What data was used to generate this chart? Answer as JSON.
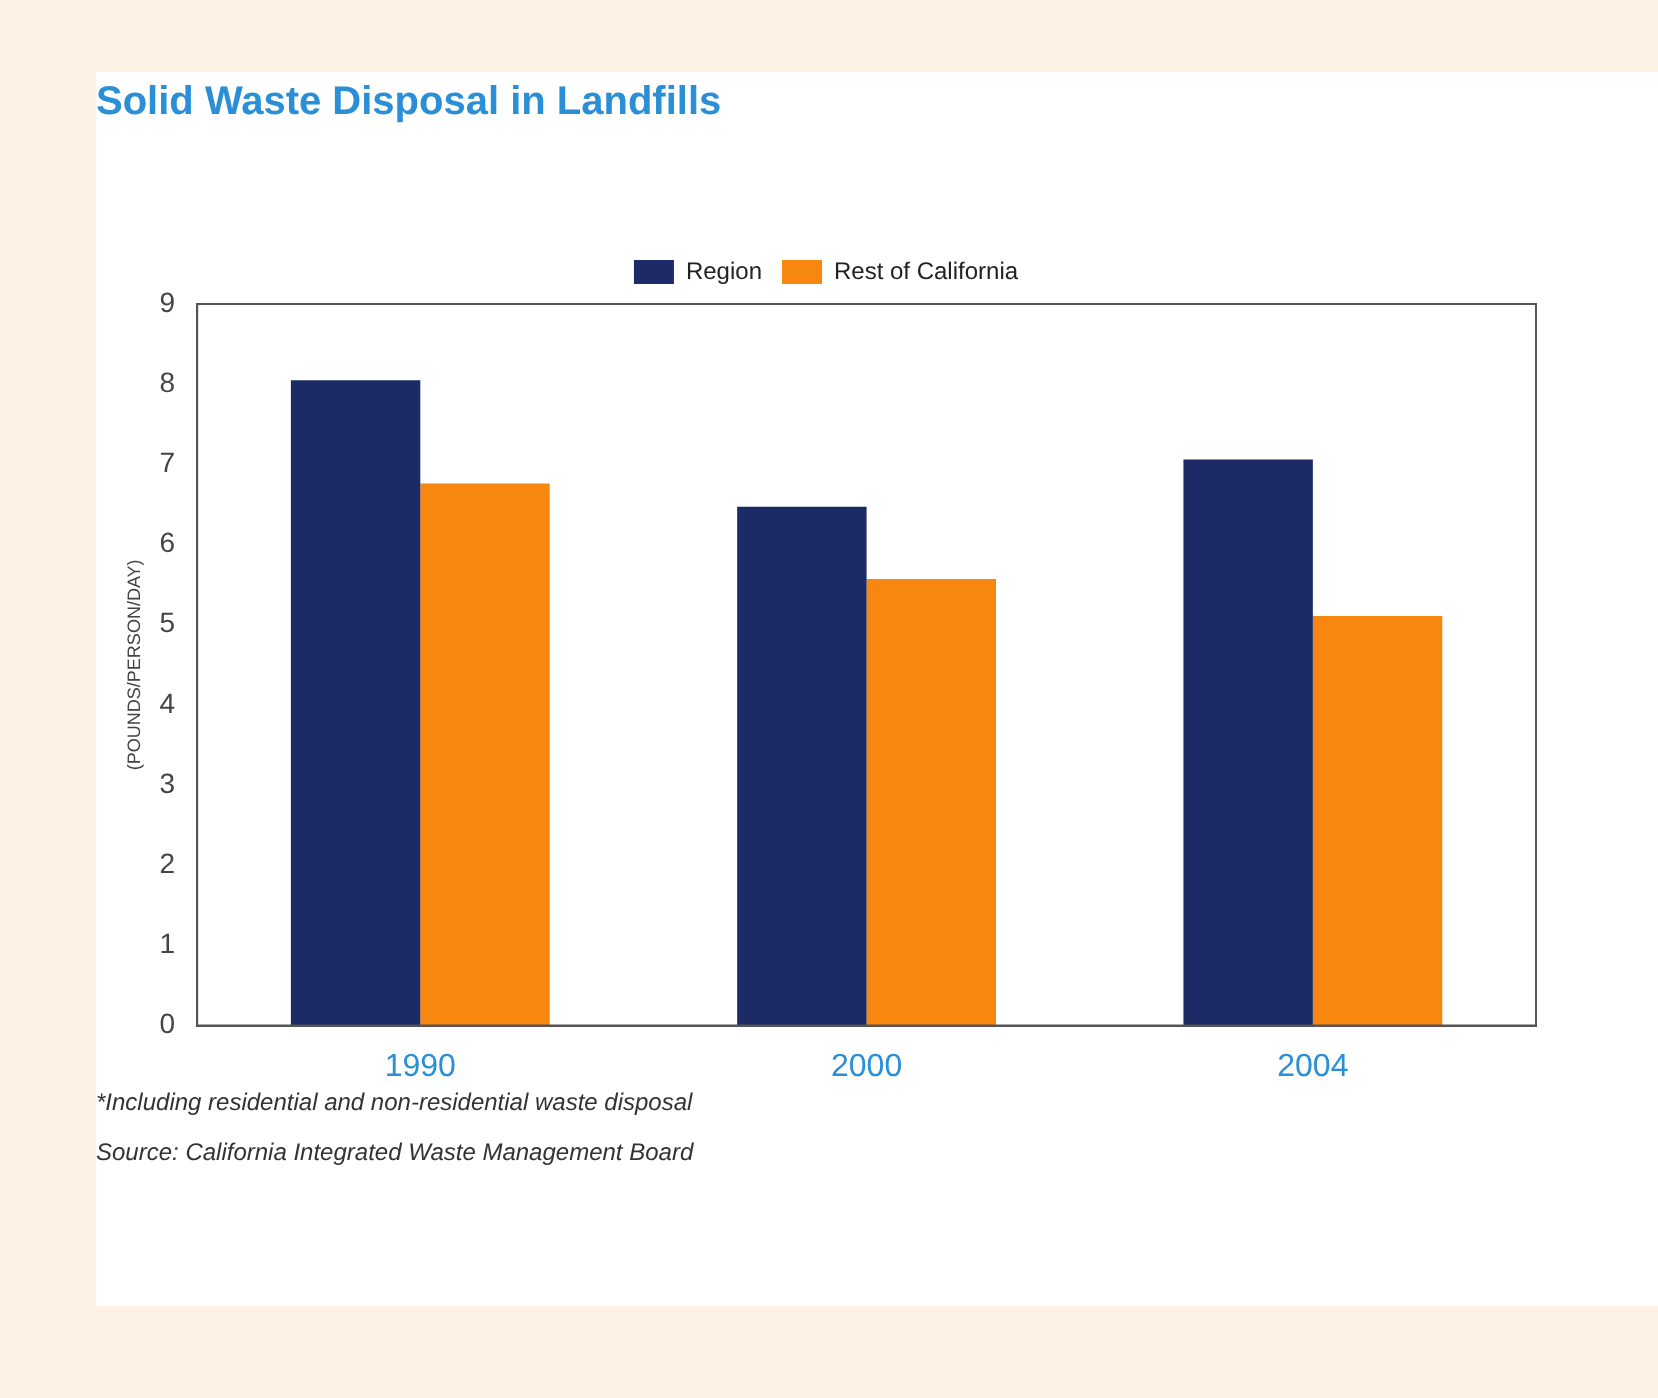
{
  "chart_data": {
    "type": "bar",
    "title": "Solid Waste Disposal in Landfills",
    "ylabel": "(POUNDS/PERSON/DAY)",
    "categories": [
      "1990",
      "2000",
      "2004"
    ],
    "series": [
      {
        "name": "Region",
        "color": "#1c2a66",
        "values": [
          8.05,
          6.47,
          7.06
        ]
      },
      {
        "name": "Rest of California",
        "color": "#f7870f",
        "values": [
          6.76,
          5.57,
          5.11
        ]
      }
    ],
    "ylim": [
      0,
      9
    ],
    "yticks": [
      0,
      1,
      2,
      3,
      4,
      5,
      6,
      7,
      8,
      9
    ],
    "grid": false,
    "legend": "top",
    "annotations": [
      "*Including residential and non-residential waste disposal",
      "Source: California Integrated Waste Management Board"
    ]
  }
}
